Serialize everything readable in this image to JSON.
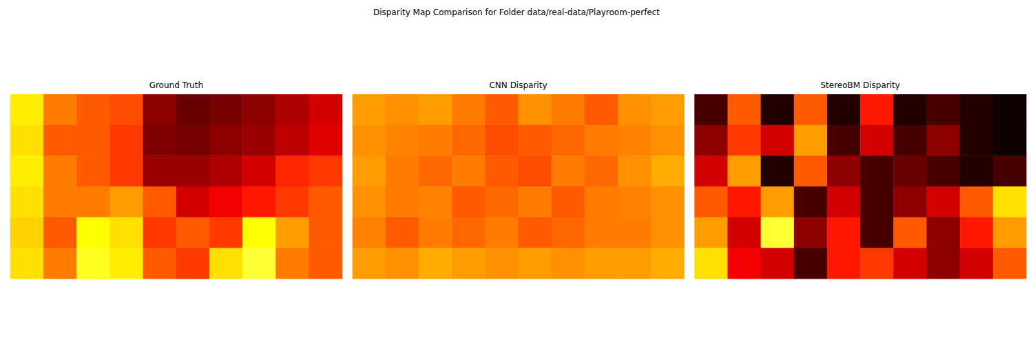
{
  "title": "Disparity Map Comparison for Folder data/real-data/Playroom-perfect",
  "chart_data": [
    {
      "type": "heatmap",
      "title": "Ground Truth",
      "color": "hot",
      "color_range": [
        0,
        1
      ],
      "tick_labels": false,
      "cells": [
        [
          0.72,
          0.55,
          0.5,
          0.48,
          0.2,
          0.15,
          0.17,
          0.2,
          0.25,
          0.3
        ],
        [
          0.7,
          0.5,
          0.5,
          0.45,
          0.18,
          0.17,
          0.2,
          0.22,
          0.27,
          0.32
        ],
        [
          0.72,
          0.55,
          0.5,
          0.45,
          0.22,
          0.22,
          0.25,
          0.3,
          0.42,
          0.45
        ],
        [
          0.7,
          0.55,
          0.55,
          0.6,
          0.5,
          0.3,
          0.35,
          0.4,
          0.45,
          0.5
        ],
        [
          0.68,
          0.5,
          0.75,
          0.7,
          0.45,
          0.5,
          0.45,
          0.75,
          0.6,
          0.5
        ],
        [
          0.7,
          0.55,
          0.78,
          0.72,
          0.5,
          0.45,
          0.7,
          0.8,
          0.55,
          0.5
        ]
      ]
    },
    {
      "type": "heatmap",
      "title": "CNN Disparity",
      "color": "hot",
      "color_range": [
        0,
        1
      ],
      "tick_labels": false,
      "cells": [
        [
          0.6,
          0.58,
          0.6,
          0.55,
          0.5,
          0.58,
          0.55,
          0.5,
          0.58,
          0.6
        ],
        [
          0.58,
          0.56,
          0.55,
          0.52,
          0.48,
          0.5,
          0.52,
          0.55,
          0.56,
          0.58
        ],
        [
          0.6,
          0.55,
          0.52,
          0.55,
          0.5,
          0.48,
          0.55,
          0.52,
          0.58,
          0.62
        ],
        [
          0.58,
          0.55,
          0.56,
          0.5,
          0.52,
          0.55,
          0.5,
          0.55,
          0.56,
          0.58
        ],
        [
          0.56,
          0.5,
          0.55,
          0.52,
          0.55,
          0.5,
          0.52,
          0.55,
          0.55,
          0.58
        ],
        [
          0.6,
          0.58,
          0.62,
          0.6,
          0.58,
          0.6,
          0.58,
          0.6,
          0.6,
          0.62
        ]
      ]
    },
    {
      "type": "heatmap",
      "title": "StereoBM Disparity",
      "color": "hot",
      "color_range": [
        0,
        1
      ],
      "tick_labels": false,
      "cells": [
        [
          0.1,
          0.5,
          0.05,
          0.5,
          0.05,
          0.4,
          0.05,
          0.1,
          0.05,
          0.02
        ],
        [
          0.2,
          0.45,
          0.3,
          0.6,
          0.1,
          0.3,
          0.1,
          0.2,
          0.05,
          0.02
        ],
        [
          0.3,
          0.6,
          0.05,
          0.5,
          0.2,
          0.1,
          0.15,
          0.1,
          0.05,
          0.1
        ],
        [
          0.5,
          0.4,
          0.6,
          0.1,
          0.3,
          0.1,
          0.2,
          0.3,
          0.5,
          0.7
        ],
        [
          0.6,
          0.3,
          0.8,
          0.2,
          0.4,
          0.1,
          0.5,
          0.2,
          0.4,
          0.6
        ],
        [
          0.7,
          0.35,
          0.3,
          0.1,
          0.4,
          0.45,
          0.3,
          0.2,
          0.3,
          0.5
        ]
      ]
    }
  ]
}
